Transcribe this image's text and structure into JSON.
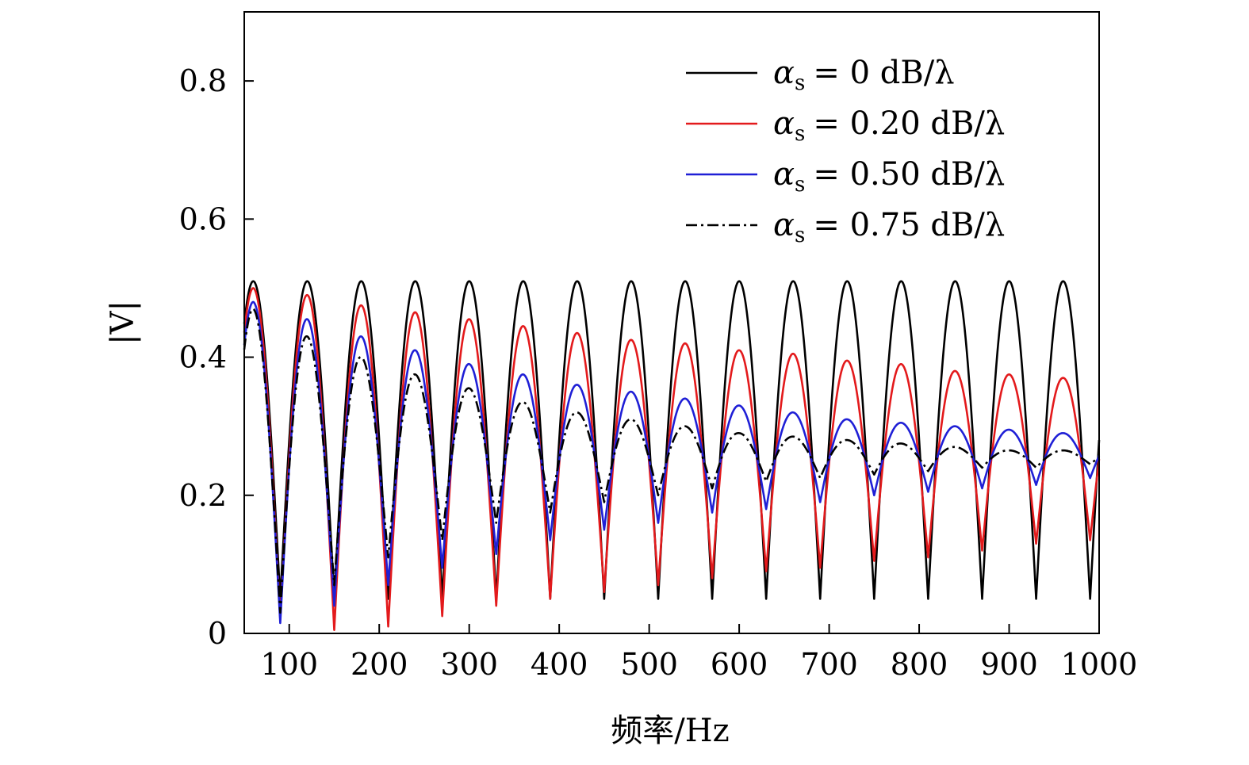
{
  "chart_data": {
    "type": "line",
    "title": "",
    "xlabel": "频率/Hz",
    "ylabel": "|V|",
    "xlim": [
      50,
      1000
    ],
    "ylim": [
      0,
      0.9
    ],
    "grid": false,
    "legend_position": "top-right",
    "x_ticks": [
      100,
      200,
      300,
      400,
      500,
      600,
      700,
      800,
      900,
      1000
    ],
    "x_tick_labels": [
      "100",
      "200",
      "300",
      "400",
      "500",
      "600",
      "700",
      "800",
      "900",
      "1000"
    ],
    "y_ticks": [
      0,
      0.2,
      0.4,
      0.6,
      0.8
    ],
    "y_tick_labels": [
      "0",
      "0.2",
      "0.4",
      "0.6",
      "0.8"
    ],
    "oscillation_period_hz": 60,
    "first_peak_hz": 60,
    "series": [
      {
        "name": "αs = 0 dB/λ",
        "legend_symbol": "α",
        "legend_subscript": "s",
        "legend_rest": "= 0 dB/λ",
        "color": "#000000",
        "dash": "solid",
        "peaks": [
          [
            60,
            0.51
          ],
          [
            120,
            0.51
          ],
          [
            180,
            0.51
          ],
          [
            240,
            0.51
          ],
          [
            300,
            0.51
          ],
          [
            360,
            0.51
          ],
          [
            420,
            0.51
          ],
          [
            480,
            0.51
          ],
          [
            540,
            0.51
          ],
          [
            600,
            0.51
          ],
          [
            660,
            0.51
          ],
          [
            720,
            0.51
          ],
          [
            780,
            0.51
          ],
          [
            840,
            0.51
          ],
          [
            900,
            0.51
          ],
          [
            960,
            0.51
          ]
        ],
        "troughs": [
          [
            90,
            0.05
          ],
          [
            150,
            0.05
          ],
          [
            210,
            0.05
          ],
          [
            270,
            0.05
          ],
          [
            330,
            0.05
          ],
          [
            390,
            0.05
          ],
          [
            450,
            0.05
          ],
          [
            510,
            0.05
          ],
          [
            570,
            0.05
          ],
          [
            630,
            0.05
          ],
          [
            690,
            0.05
          ],
          [
            750,
            0.05
          ],
          [
            810,
            0.05
          ],
          [
            870,
            0.05
          ],
          [
            930,
            0.05
          ],
          [
            990,
            0.05
          ]
        ]
      },
      {
        "name": "αs = 0.20 dB/λ",
        "legend_symbol": "α",
        "legend_subscript": "s",
        "legend_rest": "= 0.20 dB/λ",
        "color": "#e31a1c",
        "dash": "solid",
        "peaks": [
          [
            60,
            0.5
          ],
          [
            120,
            0.49
          ],
          [
            180,
            0.475
          ],
          [
            240,
            0.465
          ],
          [
            300,
            0.455
          ],
          [
            360,
            0.445
          ],
          [
            420,
            0.435
          ],
          [
            480,
            0.425
          ],
          [
            540,
            0.42
          ],
          [
            600,
            0.41
          ],
          [
            660,
            0.405
          ],
          [
            720,
            0.395
          ],
          [
            780,
            0.39
          ],
          [
            840,
            0.38
          ],
          [
            900,
            0.375
          ],
          [
            960,
            0.37
          ]
        ],
        "troughs": [
          [
            90,
            0.02
          ],
          [
            150,
            0.005
          ],
          [
            210,
            0.01
          ],
          [
            270,
            0.025
          ],
          [
            330,
            0.04
          ],
          [
            390,
            0.05
          ],
          [
            450,
            0.06
          ],
          [
            510,
            0.07
          ],
          [
            570,
            0.08
          ],
          [
            630,
            0.09
          ],
          [
            690,
            0.095
          ],
          [
            750,
            0.105
          ],
          [
            810,
            0.11
          ],
          [
            870,
            0.12
          ],
          [
            930,
            0.13
          ],
          [
            990,
            0.135
          ]
        ]
      },
      {
        "name": "αs = 0.50 dB/λ",
        "legend_symbol": "α",
        "legend_subscript": "s",
        "legend_rest": "= 0.50 dB/λ",
        "color": "#1f1fd6",
        "dash": "solid",
        "peaks": [
          [
            60,
            0.48
          ],
          [
            120,
            0.455
          ],
          [
            180,
            0.43
          ],
          [
            240,
            0.41
          ],
          [
            300,
            0.39
          ],
          [
            360,
            0.375
          ],
          [
            420,
            0.36
          ],
          [
            480,
            0.35
          ],
          [
            540,
            0.34
          ],
          [
            600,
            0.33
          ],
          [
            660,
            0.32
          ],
          [
            720,
            0.31
          ],
          [
            780,
            0.305
          ],
          [
            840,
            0.3
          ],
          [
            900,
            0.295
          ],
          [
            960,
            0.29
          ]
        ],
        "troughs": [
          [
            90,
            0.015
          ],
          [
            150,
            0.04
          ],
          [
            210,
            0.07
          ],
          [
            270,
            0.095
          ],
          [
            330,
            0.115
          ],
          [
            390,
            0.135
          ],
          [
            450,
            0.15
          ],
          [
            510,
            0.16
          ],
          [
            570,
            0.175
          ],
          [
            630,
            0.18
          ],
          [
            690,
            0.19
          ],
          [
            750,
            0.2
          ],
          [
            810,
            0.205
          ],
          [
            870,
            0.21
          ],
          [
            930,
            0.215
          ],
          [
            990,
            0.225
          ]
        ]
      },
      {
        "name": "αs = 0.75 dB/λ",
        "legend_symbol": "α",
        "legend_subscript": "s",
        "legend_rest": "= 0.75 dB/λ",
        "color": "#000000",
        "dash": "dashdot",
        "peaks": [
          [
            60,
            0.47
          ],
          [
            120,
            0.43
          ],
          [
            180,
            0.4
          ],
          [
            240,
            0.375
          ],
          [
            300,
            0.355
          ],
          [
            360,
            0.335
          ],
          [
            420,
            0.32
          ],
          [
            480,
            0.31
          ],
          [
            540,
            0.3
          ],
          [
            600,
            0.29
          ],
          [
            660,
            0.285
          ],
          [
            720,
            0.28
          ],
          [
            780,
            0.275
          ],
          [
            840,
            0.27
          ],
          [
            900,
            0.265
          ],
          [
            960,
            0.265
          ]
        ],
        "troughs": [
          [
            90,
            0.03
          ],
          [
            150,
            0.07
          ],
          [
            210,
            0.11
          ],
          [
            270,
            0.135
          ],
          [
            330,
            0.16
          ],
          [
            390,
            0.175
          ],
          [
            450,
            0.19
          ],
          [
            510,
            0.2
          ],
          [
            570,
            0.21
          ],
          [
            630,
            0.22
          ],
          [
            690,
            0.225
          ],
          [
            750,
            0.23
          ],
          [
            810,
            0.235
          ],
          [
            870,
            0.24
          ],
          [
            930,
            0.24
          ],
          [
            990,
            0.245
          ]
        ]
      }
    ]
  }
}
